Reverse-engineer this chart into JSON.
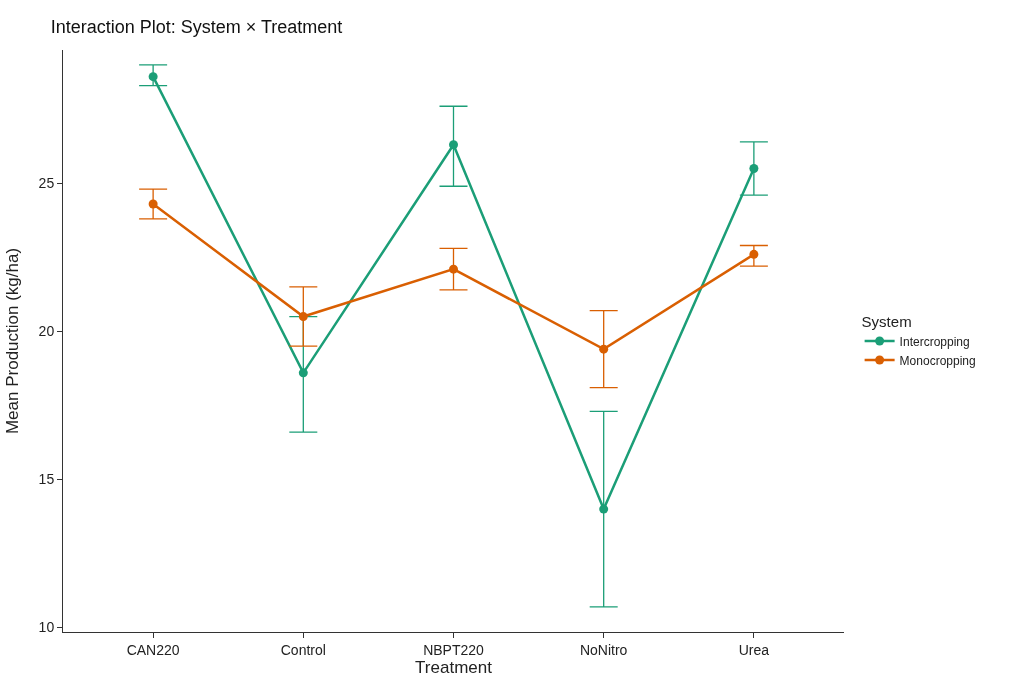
{
  "chart_data": {
    "type": "line",
    "title": "Interaction Plot: System × Treatment",
    "xlabel": "Treatment",
    "ylabel": "Mean Production (kg/ha)",
    "legend_title": "System",
    "categories": [
      "CAN220",
      "Control",
      "NBPT220",
      "NoNitro",
      "Urea"
    ],
    "series": [
      {
        "name": "Intercropping",
        "color": "#1b9e77",
        "values": [
          28.6,
          18.6,
          26.3,
          14.0,
          25.5
        ],
        "errors": [
          [
            28.3,
            29.0
          ],
          [
            16.6,
            20.5
          ],
          [
            24.9,
            27.6
          ],
          [
            10.7,
            17.3
          ],
          [
            24.6,
            26.4
          ]
        ]
      },
      {
        "name": "Monocropping",
        "color": "#d95f02",
        "values": [
          24.3,
          20.5,
          22.1,
          19.4,
          22.6
        ],
        "errors": [
          [
            23.8,
            24.8
          ],
          [
            19.5,
            21.5
          ],
          [
            21.4,
            22.8
          ],
          [
            18.1,
            20.7
          ],
          [
            22.2,
            22.9
          ]
        ]
      }
    ],
    "ylim": [
      9.85,
      29.5
    ],
    "yticks": [
      10,
      15,
      20,
      25
    ],
    "grid": false,
    "legend": "right",
    "marker": "circle",
    "line_style": "solid"
  }
}
